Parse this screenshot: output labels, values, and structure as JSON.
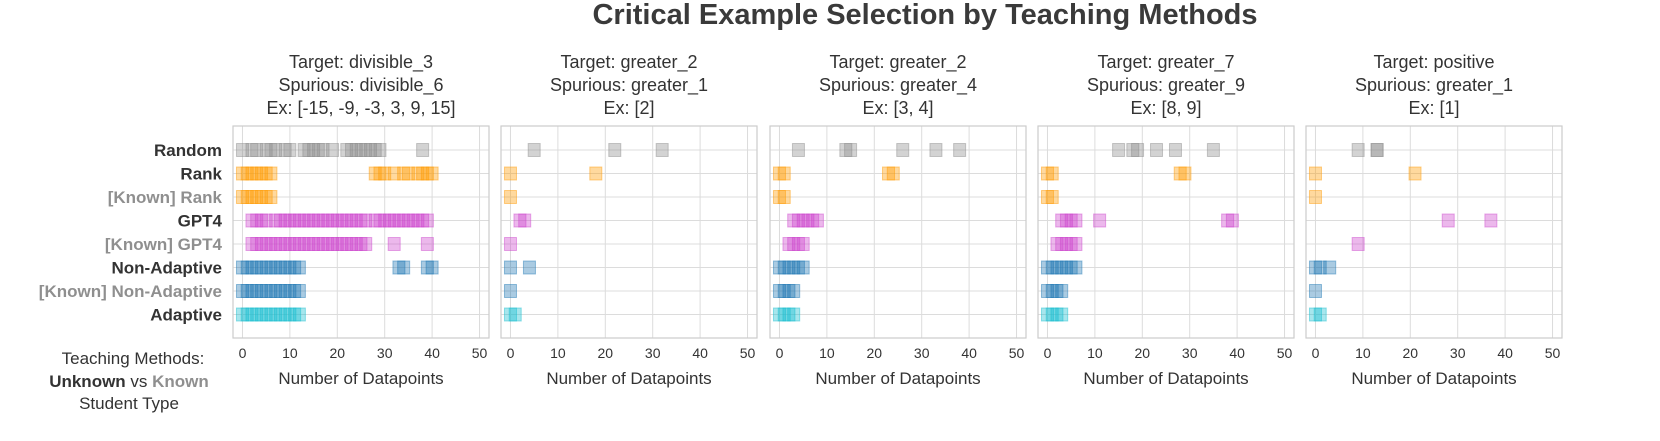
{
  "chart_data": {
    "type": "scatter",
    "title": "Critical Example Selection by Teaching Methods",
    "xlabel": "Number of Datapoints",
    "xlim": [
      -2,
      52
    ],
    "xticks": [
      0,
      10,
      20,
      30,
      40,
      50
    ],
    "methods": [
      {
        "label": "Random",
        "known": false,
        "color": "#8c8c8c"
      },
      {
        "label": "Rank",
        "known": false,
        "color": "#ff9a00"
      },
      {
        "label": "[Known] Rank",
        "known": true,
        "color": "#ff9a00"
      },
      {
        "label": "GPT4",
        "known": false,
        "color": "#cc44cc"
      },
      {
        "label": "[Known] GPT4",
        "known": true,
        "color": "#cc44cc"
      },
      {
        "label": "Non-Adaptive",
        "known": false,
        "color": "#1f77b4"
      },
      {
        "label": "[Known] Non-Adaptive",
        "known": true,
        "color": "#1f77b4"
      },
      {
        "label": "Adaptive",
        "known": false,
        "color": "#17becf"
      }
    ],
    "panels": [
      {
        "title": [
          "Target: divisible_3",
          "Spurious: divisible_6",
          "Ex: [-15, -9, -3, 3, 9, 15]"
        ],
        "rows": [
          [
            0,
            2,
            3,
            5,
            6,
            7,
            9,
            10,
            13,
            14,
            15,
            16,
            17,
            19,
            22,
            23,
            24,
            25,
            26,
            27,
            28,
            29,
            38
          ],
          [
            0,
            1,
            2,
            3,
            4,
            5,
            6,
            28,
            29,
            30,
            32,
            34,
            35,
            37,
            38,
            39,
            40
          ],
          [
            0,
            1,
            2,
            3,
            4,
            5,
            6
          ],
          [
            2,
            3,
            4,
            5,
            7,
            8,
            9,
            10,
            11,
            12,
            13,
            14,
            15,
            16,
            17,
            18,
            19,
            20,
            21,
            22,
            23,
            24,
            25,
            26,
            28,
            29,
            30,
            31,
            32,
            33,
            34,
            35,
            36,
            37,
            38,
            39
          ],
          [
            2,
            3,
            4,
            5,
            6,
            7,
            8,
            9,
            10,
            11,
            12,
            13,
            14,
            15,
            16,
            17,
            18,
            19,
            20,
            21,
            22,
            23,
            24,
            25,
            26,
            32,
            39
          ],
          [
            0,
            1,
            2,
            3,
            4,
            5,
            6,
            7,
            8,
            9,
            10,
            11,
            12,
            33,
            34,
            39,
            40
          ],
          [
            0,
            1,
            2,
            3,
            4,
            5,
            6,
            7,
            8,
            9,
            10,
            11,
            12
          ],
          [
            0,
            1,
            2,
            3,
            4,
            5,
            6,
            7,
            8,
            9,
            10,
            11,
            12
          ]
        ]
      },
      {
        "title": [
          "Target: greater_2",
          "Spurious: greater_1",
          "Ex: [2]"
        ],
        "rows": [
          [
            5,
            22,
            32
          ],
          [
            0,
            18
          ],
          [
            0
          ],
          [
            2,
            3
          ],
          [
            0
          ],
          [
            0,
            4
          ],
          [
            0
          ],
          [
            0,
            1
          ]
        ]
      },
      {
        "title": [
          "Target: greater_2",
          "Spurious: greater_4",
          "Ex: [3, 4]"
        ],
        "rows": [
          [
            4,
            14,
            15,
            26,
            33,
            38
          ],
          [
            0,
            1,
            23,
            24
          ],
          [
            0,
            1
          ],
          [
            3,
            4,
            5,
            6,
            7,
            8
          ],
          [
            2,
            3,
            4,
            5
          ],
          [
            0,
            1,
            2,
            3,
            4,
            5
          ],
          [
            0,
            1,
            2,
            3
          ],
          [
            0,
            1,
            2,
            3
          ]
        ]
      },
      {
        "title": [
          "Target: greater_7",
          "Spurious: greater_9",
          "Ex: [8, 9]"
        ],
        "rows": [
          [
            15,
            18,
            19,
            23,
            27,
            35
          ],
          [
            0,
            1,
            28,
            29
          ],
          [
            0,
            1
          ],
          [
            3,
            4,
            5,
            6,
            11,
            38,
            39
          ],
          [
            2,
            3,
            4,
            5,
            6
          ],
          [
            0,
            1,
            2,
            3,
            4,
            5,
            6
          ],
          [
            0,
            1,
            2,
            3
          ],
          [
            0,
            1,
            2,
            3
          ]
        ]
      },
      {
        "title": [
          "Target: positive",
          "Spurious: greater_1",
          "Ex: [1]"
        ],
        "rows": [
          [
            9,
            13,
            13
          ],
          [
            0,
            21
          ],
          [
            0
          ],
          [
            28,
            37
          ],
          [
            9
          ],
          [
            0,
            1,
            3
          ],
          [
            0
          ],
          [
            0,
            1
          ]
        ]
      }
    ],
    "legend": {
      "line1": "Teaching Methods:",
      "unknown": "Unknown",
      "vs": "vs",
      "known": "Known",
      "line3": "Student Type"
    },
    "grid": true
  },
  "colors": {
    "unknown_text": "#333333",
    "known_text": "#8f8f8f"
  }
}
